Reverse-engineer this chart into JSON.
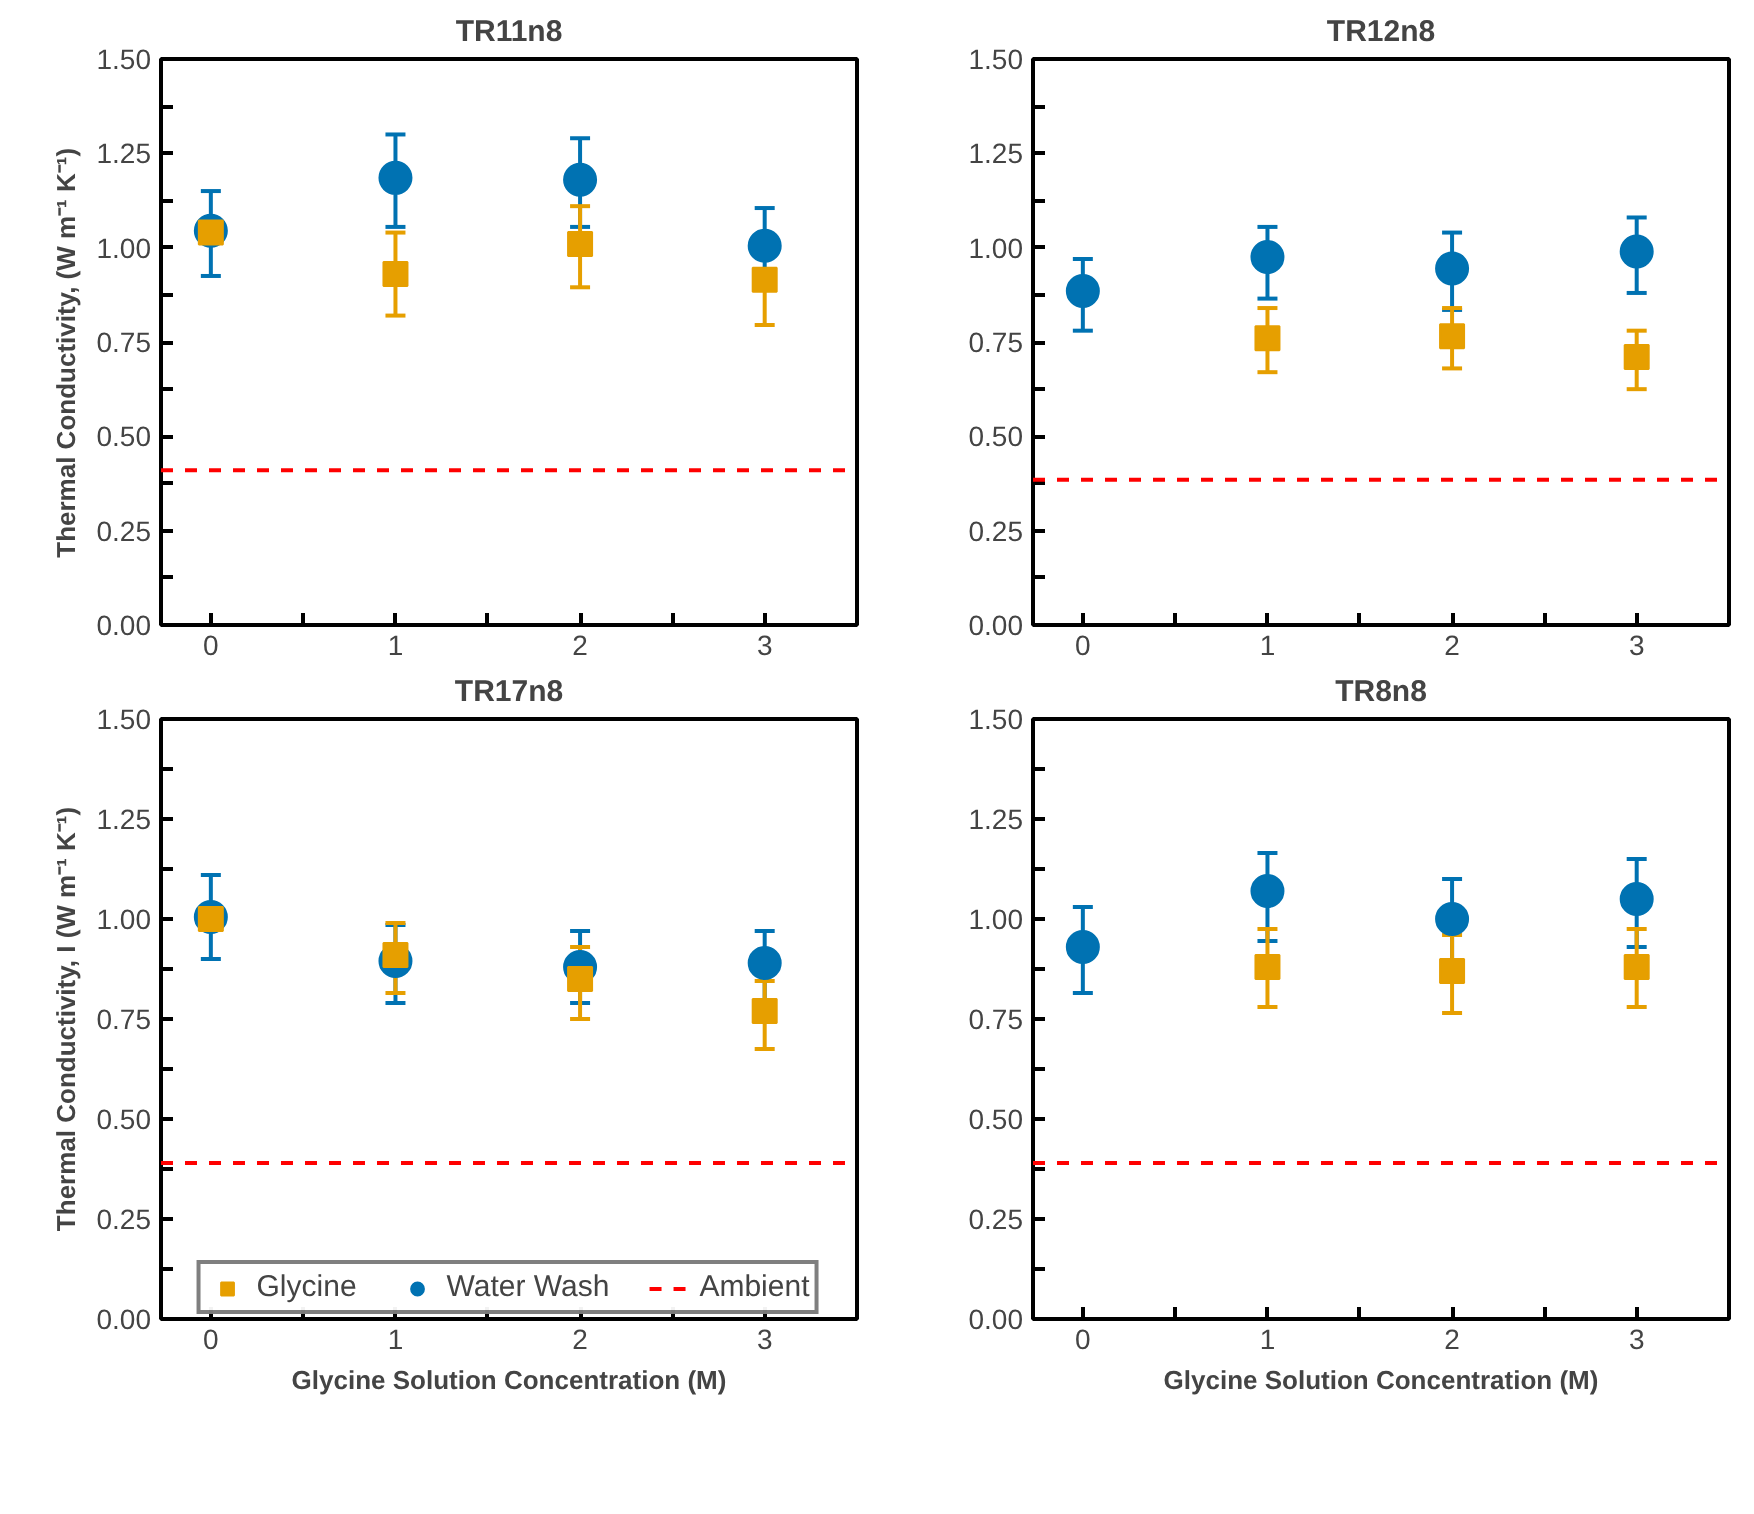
{
  "chart_data": [
    {
      "type": "scatter",
      "title": "TR11n8",
      "ylabel": "Thermal Conductivity,    (W m⁻¹ K⁻¹)",
      "x": [
        0,
        1,
        2,
        3
      ],
      "xlim": [
        -0.27,
        3.5
      ],
      "xticks": [
        0,
        {
          "value": 0.5,
          "label": null
        },
        1,
        {
          "value": 1.5,
          "label": null
        },
        2,
        {
          "value": 2.5,
          "label": null
        },
        3
      ],
      "ylim": [
        0,
        1.5
      ],
      "yticks": [
        {
          "value": 0,
          "label": "0.00"
        },
        {
          "value": 0.125,
          "label": null
        },
        {
          "value": 0.25,
          "label": "0.25"
        },
        {
          "value": 0.375,
          "label": null
        },
        {
          "value": 0.5,
          "label": "0.50"
        },
        {
          "value": 0.625,
          "label": null
        },
        {
          "value": 0.75,
          "label": "0.75"
        },
        {
          "value": 0.875,
          "label": null
        },
        {
          "value": 1,
          "label": "1.00"
        },
        {
          "value": 1.125,
          "label": null
        },
        {
          "value": 1.25,
          "label": "1.25"
        },
        {
          "value": 1.375,
          "label": null
        },
        {
          "value": 1.5,
          "label": "1.50"
        }
      ],
      "grid": false,
      "legend": false,
      "series": [
        {
          "color": "#e69f00",
          "marker": "square",
          "values": [
            1.04,
            0.93,
            1.01,
            0.915
          ],
          "errors": [
            null,
            [
              0.82,
              1.04
            ],
            [
              0.895,
              1.11
            ],
            [
              0.795,
              0.915
            ]
          ]
        },
        {
          "color": "#0072b2",
          "marker": "circle",
          "values": [
            1.045,
            1.185,
            1.18,
            1.005
          ],
          "errors": [
            [
              0.925,
              1.15
            ],
            [
              1.055,
              1.3
            ],
            [
              1.055,
              1.29
            ],
            [
              0.895,
              1.105
            ]
          ]
        }
      ],
      "ref_lines": [
        {
          "axis": "y",
          "value": 0.41,
          "color": "#ff0000",
          "line_style": "dashed"
        }
      ]
    },
    {
      "type": "scatter",
      "title": "TR12n8",
      "x": [
        0,
        1,
        2,
        3
      ],
      "xlim": [
        -0.27,
        3.5
      ],
      "xticks": [
        0,
        {
          "value": 0.5,
          "label": null
        },
        1,
        {
          "value": 1.5,
          "label": null
        },
        2,
        {
          "value": 2.5,
          "label": null
        },
        3
      ],
      "ylim": [
        0,
        1.5
      ],
      "yticks": [
        {
          "value": 0,
          "label": "0.00"
        },
        {
          "value": 0.125,
          "label": null
        },
        {
          "value": 0.25,
          "label": "0.25"
        },
        {
          "value": 0.375,
          "label": null
        },
        {
          "value": 0.5,
          "label": "0.50"
        },
        {
          "value": 0.625,
          "label": null
        },
        {
          "value": 0.75,
          "label": "0.75"
        },
        {
          "value": 0.875,
          "label": null
        },
        {
          "value": 1,
          "label": "1.00"
        },
        {
          "value": 1.125,
          "label": null
        },
        {
          "value": 1.25,
          "label": "1.25"
        },
        {
          "value": 1.375,
          "label": null
        },
        {
          "value": 1.5,
          "label": "1.50"
        }
      ],
      "grid": false,
      "legend": false,
      "series": [
        {
          "color": "#e69f00",
          "marker": "square",
          "values": [
            null,
            0.76,
            0.765,
            0.71
          ],
          "errors": [
            null,
            [
              0.67,
              0.84
            ],
            [
              0.68,
              0.84
            ],
            [
              0.625,
              0.78
            ]
          ]
        },
        {
          "color": "#0072b2",
          "marker": "circle",
          "values": [
            0.885,
            0.975,
            0.945,
            0.99
          ],
          "errors": [
            [
              0.78,
              0.97
            ],
            [
              0.865,
              1.055
            ],
            [
              0.835,
              1.04
            ],
            [
              0.88,
              1.08
            ]
          ]
        }
      ],
      "ref_lines": [
        {
          "axis": "y",
          "value": 0.385,
          "color": "#ff0000",
          "line_style": "dashed"
        }
      ]
    },
    {
      "type": "scatter",
      "title": "TR17n8",
      "xlabel": "Glycine Solution Concentration (M)",
      "ylabel": "Thermal Conductivity, I (W m⁻¹ K⁻¹)",
      "x": [
        0,
        1,
        2,
        3
      ],
      "xlim": [
        -0.27,
        3.5
      ],
      "xticks": [
        0,
        {
          "value": 0.5,
          "label": null
        },
        1,
        {
          "value": 1.5,
          "label": null
        },
        2,
        {
          "value": 2.5,
          "label": null
        },
        3
      ],
      "ylim": [
        0,
        1.5
      ],
      "yticks": [
        {
          "value": 0,
          "label": "0.00"
        },
        {
          "value": 0.125,
          "label": null
        },
        {
          "value": 0.25,
          "label": "0.25"
        },
        {
          "value": 0.375,
          "label": null
        },
        {
          "value": 0.5,
          "label": "0.50"
        },
        {
          "value": 0.625,
          "label": null
        },
        {
          "value": 0.75,
          "label": "0.75"
        },
        {
          "value": 0.875,
          "label": null
        },
        {
          "value": 1,
          "label": "1.00"
        },
        {
          "value": 1.125,
          "label": null
        },
        {
          "value": 1.25,
          "label": "1.25"
        },
        {
          "value": 1.375,
          "label": null
        },
        {
          "value": 1.5,
          "label": "1.50"
        }
      ],
      "grid": false,
      "legend": "bottom",
      "series": [
        {
          "name": "Glycine",
          "color": "#e69f00",
          "marker": "square",
          "values": [
            1.0,
            0.91,
            0.85,
            0.77
          ],
          "errors": [
            null,
            [
              0.815,
              0.99
            ],
            [
              0.75,
              0.93
            ],
            [
              0.675,
              0.845
            ]
          ]
        },
        {
          "name": "Water Wash",
          "color": "#0072b2",
          "marker": "circle",
          "values": [
            1.005,
            0.895,
            0.88,
            0.89
          ],
          "errors": [
            [
              0.9,
              1.11
            ],
            [
              0.79,
              0.985
            ],
            [
              0.79,
              0.97
            ],
            [
              0.795,
              0.97
            ]
          ]
        }
      ],
      "ref_lines": [
        {
          "axis": "y",
          "value": 0.39,
          "label": "Ambient",
          "color": "#ff0000",
          "line_style": "dashed"
        }
      ]
    },
    {
      "type": "scatter",
      "title": "TR8n8",
      "xlabel": "Glycine Solution Concentration (M)",
      "x": [
        0,
        1,
        2,
        3
      ],
      "xlim": [
        -0.27,
        3.5
      ],
      "xticks": [
        0,
        {
          "value": 0.5,
          "label": null
        },
        1,
        {
          "value": 1.5,
          "label": null
        },
        2,
        {
          "value": 2.5,
          "label": null
        },
        3
      ],
      "ylim": [
        0,
        1.5
      ],
      "yticks": [
        {
          "value": 0,
          "label": "0.00"
        },
        {
          "value": 0.125,
          "label": null
        },
        {
          "value": 0.25,
          "label": "0.25"
        },
        {
          "value": 0.375,
          "label": null
        },
        {
          "value": 0.5,
          "label": "0.50"
        },
        {
          "value": 0.625,
          "label": null
        },
        {
          "value": 0.75,
          "label": "0.75"
        },
        {
          "value": 0.875,
          "label": null
        },
        {
          "value": 1,
          "label": "1.00"
        },
        {
          "value": 1.125,
          "label": null
        },
        {
          "value": 1.25,
          "label": "1.25"
        },
        {
          "value": 1.375,
          "label": null
        },
        {
          "value": 1.5,
          "label": "1.50"
        }
      ],
      "grid": false,
      "legend": false,
      "series": [
        {
          "color": "#e69f00",
          "marker": "square",
          "values": [
            null,
            0.88,
            0.87,
            0.88
          ],
          "errors": [
            null,
            [
              0.78,
              0.975
            ],
            [
              0.765,
              0.96
            ],
            [
              0.78,
              0.975
            ]
          ]
        },
        {
          "color": "#0072b2",
          "marker": "circle",
          "values": [
            0.93,
            1.07,
            1.0,
            1.05
          ],
          "errors": [
            [
              0.815,
              1.03
            ],
            [
              0.945,
              1.165
            ],
            [
              0.89,
              1.1
            ],
            [
              0.93,
              1.15
            ]
          ]
        }
      ],
      "ref_lines": [
        {
          "axis": "y",
          "value": 0.39,
          "color": "#ff0000",
          "line_style": "dashed"
        }
      ]
    }
  ]
}
